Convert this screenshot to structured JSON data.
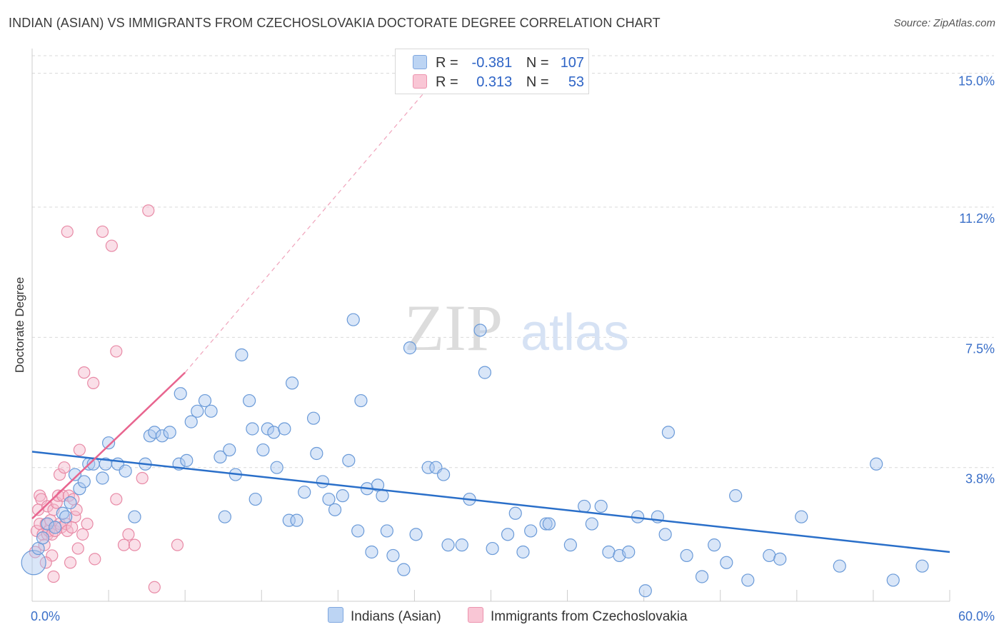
{
  "title": "INDIAN (ASIAN) VS IMMIGRANTS FROM CZECHOSLOVAKIA DOCTORATE DEGREE CORRELATION CHART",
  "source": "Source: ZipAtlas.com",
  "watermark": {
    "zip": "ZIP",
    "atlas": "atlas"
  },
  "colors": {
    "blue_fill": "#aac8f0",
    "blue_stroke": "#6a9ad8",
    "blue_line": "#2a6fc9",
    "pink_fill": "#f5b8cb",
    "pink_stroke": "#e88aa6",
    "pink_line": "#e8658f",
    "axis_text": "#3a6fc8",
    "grid": "#d9d9d9"
  },
  "legend": {
    "r_label": "R =",
    "n_label": "N =",
    "rows": [
      {
        "r": "-0.381",
        "n": "107"
      },
      {
        "r": "0.313",
        "n": "53"
      }
    ]
  },
  "chart_data": {
    "type": "scatter",
    "title": "INDIAN (ASIAN) VS IMMIGRANTS FROM CZECHOSLOVAKIA DOCTORATE DEGREE CORRELATION CHART",
    "xlabel": "",
    "ylabel": "Doctorate Degree",
    "xlim": [
      0,
      60
    ],
    "ylim": [
      0,
      15.5
    ],
    "x_tick_labels": [
      "0.0%",
      "60.0%"
    ],
    "y_ticks": [
      3.8,
      7.5,
      11.2,
      15.0
    ],
    "y_tick_labels": [
      "3.8%",
      "7.5%",
      "11.2%",
      "15.0%"
    ],
    "grid": true,
    "legend_position": "bottom",
    "series": [
      {
        "name": "Indians (Asian)",
        "r": -0.381,
        "n": 107,
        "trend": {
          "x0": 0,
          "y0": 4.25,
          "x1": 60,
          "y1": 1.4
        },
        "points": [
          [
            0.1,
            1.1
          ],
          [
            0.4,
            1.5
          ],
          [
            0.7,
            1.8
          ],
          [
            1.0,
            2.2
          ],
          [
            1.5,
            2.1
          ],
          [
            2.0,
            2.5
          ],
          [
            2.2,
            2.4
          ],
          [
            2.5,
            2.8
          ],
          [
            2.8,
            3.6
          ],
          [
            3.1,
            3.2
          ],
          [
            3.4,
            3.4
          ],
          [
            3.7,
            3.9
          ],
          [
            4.0,
            3.9
          ],
          [
            4.6,
            3.5
          ],
          [
            4.8,
            3.9
          ],
          [
            5.0,
            4.5
          ],
          [
            5.6,
            3.9
          ],
          [
            6.1,
            3.7
          ],
          [
            6.7,
            2.4
          ],
          [
            7.4,
            3.9
          ],
          [
            7.7,
            4.7
          ],
          [
            8.0,
            4.8
          ],
          [
            8.5,
            4.7
          ],
          [
            9.0,
            4.8
          ],
          [
            9.6,
            3.9
          ],
          [
            9.7,
            5.9
          ],
          [
            10.1,
            4.0
          ],
          [
            10.4,
            5.1
          ],
          [
            10.8,
            5.4
          ],
          [
            11.3,
            5.7
          ],
          [
            11.7,
            5.4
          ],
          [
            12.3,
            4.1
          ],
          [
            12.6,
            2.4
          ],
          [
            12.9,
            4.3
          ],
          [
            13.3,
            3.6
          ],
          [
            13.7,
            7.0
          ],
          [
            14.2,
            5.7
          ],
          [
            14.4,
            4.9
          ],
          [
            14.6,
            2.9
          ],
          [
            15.1,
            4.3
          ],
          [
            15.4,
            4.9
          ],
          [
            15.8,
            4.8
          ],
          [
            16.0,
            3.8
          ],
          [
            16.5,
            4.9
          ],
          [
            16.8,
            2.3
          ],
          [
            17.0,
            6.2
          ],
          [
            17.3,
            2.3
          ],
          [
            17.8,
            3.1
          ],
          [
            18.4,
            5.2
          ],
          [
            18.6,
            4.2
          ],
          [
            19.0,
            3.4
          ],
          [
            19.4,
            2.9
          ],
          [
            19.8,
            2.6
          ],
          [
            20.3,
            3.0
          ],
          [
            20.7,
            4.0
          ],
          [
            21.0,
            8.0
          ],
          [
            21.3,
            2.0
          ],
          [
            21.5,
            5.7
          ],
          [
            21.9,
            3.2
          ],
          [
            22.2,
            1.4
          ],
          [
            22.6,
            3.3
          ],
          [
            22.9,
            3.0
          ],
          [
            23.2,
            2.0
          ],
          [
            23.6,
            1.3
          ],
          [
            24.3,
            0.9
          ],
          [
            24.7,
            7.2
          ],
          [
            25.1,
            1.9
          ],
          [
            25.9,
            3.8
          ],
          [
            26.4,
            3.8
          ],
          [
            26.9,
            3.6
          ],
          [
            27.2,
            1.6
          ],
          [
            28.1,
            1.6
          ],
          [
            28.6,
            2.9
          ],
          [
            29.3,
            7.7
          ],
          [
            29.6,
            6.5
          ],
          [
            30.1,
            1.5
          ],
          [
            31.1,
            1.9
          ],
          [
            31.6,
            2.5
          ],
          [
            32.1,
            1.4
          ],
          [
            32.6,
            2.0
          ],
          [
            33.6,
            2.2
          ],
          [
            33.8,
            2.2
          ],
          [
            35.2,
            1.6
          ],
          [
            36.1,
            2.7
          ],
          [
            36.6,
            2.2
          ],
          [
            37.2,
            2.7
          ],
          [
            37.7,
            1.4
          ],
          [
            38.4,
            1.3
          ],
          [
            39.0,
            1.4
          ],
          [
            39.6,
            2.4
          ],
          [
            40.1,
            0.3
          ],
          [
            40.9,
            2.4
          ],
          [
            41.4,
            1.9
          ],
          [
            41.6,
            4.8
          ],
          [
            42.8,
            1.3
          ],
          [
            43.8,
            0.7
          ],
          [
            44.6,
            1.6
          ],
          [
            45.4,
            1.1
          ],
          [
            46.0,
            3.0
          ],
          [
            46.8,
            0.6
          ],
          [
            48.2,
            1.3
          ],
          [
            48.9,
            1.2
          ],
          [
            50.3,
            2.4
          ],
          [
            52.8,
            1.0
          ],
          [
            55.2,
            3.9
          ],
          [
            56.3,
            0.6
          ],
          [
            58.2,
            1.0
          ]
        ]
      },
      {
        "name": "Immigrants from Czechoslovakia",
        "r": 0.313,
        "n": 53,
        "trend": {
          "x0": 0,
          "y0": 2.35,
          "x1": 10,
          "y1": 6.5
        },
        "trend_extension": {
          "x0": 10,
          "y0": 6.5,
          "x1": 27.5,
          "y1": 15.4
        },
        "points": [
          [
            0.2,
            1.4
          ],
          [
            0.3,
            2.0
          ],
          [
            0.4,
            2.6
          ],
          [
            0.5,
            3.0
          ],
          [
            0.5,
            2.2
          ],
          [
            0.6,
            2.9
          ],
          [
            0.7,
            1.9
          ],
          [
            0.8,
            1.6
          ],
          [
            0.9,
            2.2
          ],
          [
            1.0,
            1.9
          ],
          [
            1.0,
            2.7
          ],
          [
            1.1,
            2.0
          ],
          [
            1.2,
            2.3
          ],
          [
            1.3,
            1.3
          ],
          [
            1.3,
            1.9
          ],
          [
            1.4,
            2.6
          ],
          [
            1.5,
            2.0
          ],
          [
            1.6,
            2.8
          ],
          [
            1.7,
            3.0
          ],
          [
            1.8,
            3.6
          ],
          [
            1.8,
            2.2
          ],
          [
            1.9,
            2.1
          ],
          [
            2.0,
            3.0
          ],
          [
            2.1,
            3.8
          ],
          [
            2.2,
            2.2
          ],
          [
            2.3,
            2.0
          ],
          [
            2.4,
            3.0
          ],
          [
            2.5,
            1.1
          ],
          [
            2.6,
            2.1
          ],
          [
            2.7,
            2.9
          ],
          [
            2.8,
            2.4
          ],
          [
            2.9,
            2.6
          ],
          [
            3.0,
            1.5
          ],
          [
            3.1,
            4.3
          ],
          [
            3.3,
            1.9
          ],
          [
            3.4,
            6.5
          ],
          [
            3.6,
            2.2
          ],
          [
            4.0,
            6.2
          ],
          [
            4.1,
            1.2
          ],
          [
            2.3,
            10.5
          ],
          [
            4.6,
            10.5
          ],
          [
            5.2,
            10.1
          ],
          [
            5.5,
            7.1
          ],
          [
            5.5,
            2.9
          ],
          [
            6.0,
            1.6
          ],
          [
            6.3,
            1.9
          ],
          [
            6.7,
            1.6
          ],
          [
            7.2,
            3.5
          ],
          [
            7.6,
            11.1
          ],
          [
            8.0,
            0.4
          ],
          [
            9.5,
            1.6
          ],
          [
            1.4,
            0.7
          ],
          [
            0.9,
            1.1
          ]
        ]
      }
    ]
  },
  "bottom_legend": [
    {
      "label": "Indians (Asian)"
    },
    {
      "label": "Immigrants from Czechoslovakia"
    }
  ]
}
